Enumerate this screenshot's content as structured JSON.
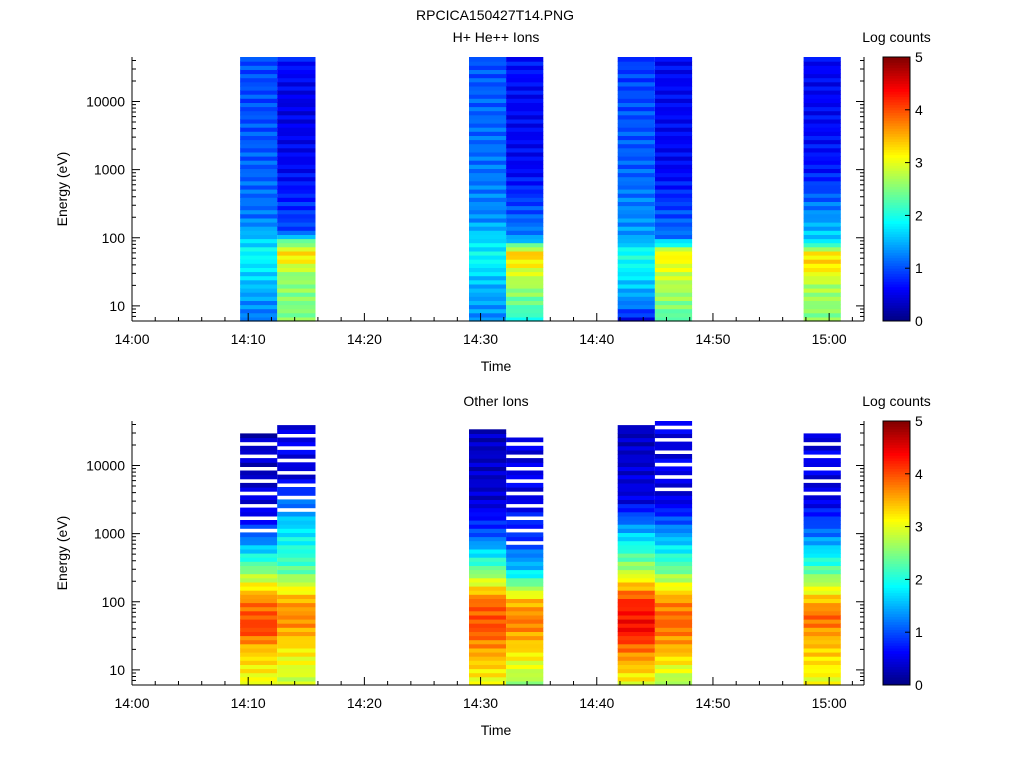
{
  "figure": {
    "title": "RPCICA150427T14.PNG"
  },
  "chart_data": [
    {
      "type": "heatmap",
      "title": "H+ He++ Ions",
      "xlabel": "Time",
      "ylabel": "Energy (eV)",
      "colorbar_label": "Log counts",
      "colorbar_ticks": [
        "0",
        "1",
        "2",
        "3",
        "4",
        "5"
      ],
      "color_range": [
        0,
        5
      ],
      "colormap": "jet",
      "x_tick_labels": [
        "14:00",
        "14:10",
        "14:20",
        "14:30",
        "14:40",
        "14:50",
        "15:00"
      ],
      "x_range_minutes": [
        0,
        63
      ],
      "y_tick_labels": [
        "10",
        "100",
        "1000",
        "10000"
      ],
      "y_scale": "log",
      "y_range": [
        6,
        45000
      ],
      "columns": [
        {
          "start": 9.3,
          "end": 12.5,
          "profile": [
            [
              6,
              1.2
            ],
            [
              10,
              1.3
            ],
            [
              30,
              1.7
            ],
            [
              60,
              1.9
            ],
            [
              100,
              1.6
            ],
            [
              200,
              1.2
            ],
            [
              1000,
              1.1
            ],
            [
              10000,
              1.0
            ],
            [
              45000,
              1.0
            ]
          ]
        },
        {
          "start": 12.5,
          "end": 15.8,
          "profile": [
            [
              6,
              2.5
            ],
            [
              10,
              2.5
            ],
            [
              30,
              2.6
            ],
            [
              40,
              3.0
            ],
            [
              60,
              3.3
            ],
            [
              100,
              2.0
            ],
            [
              120,
              1.0
            ],
            [
              1000,
              0.6
            ],
            [
              10000,
              0.5
            ],
            [
              45000,
              0.7
            ]
          ]
        },
        {
          "start": 29.0,
          "end": 32.2,
          "profile": [
            [
              6,
              1.3
            ],
            [
              20,
              1.5
            ],
            [
              50,
              1.9
            ],
            [
              100,
              1.7
            ],
            [
              200,
              1.3
            ],
            [
              1000,
              1.2
            ],
            [
              10000,
              1.1
            ],
            [
              45000,
              1.0
            ]
          ]
        },
        {
          "start": 32.2,
          "end": 35.4,
          "profile": [
            [
              6,
              2.0
            ],
            [
              10,
              2.3
            ],
            [
              30,
              2.9
            ],
            [
              60,
              3.4
            ],
            [
              100,
              1.3
            ],
            [
              1000,
              0.6
            ],
            [
              10000,
              0.6
            ],
            [
              45000,
              0.7
            ]
          ]
        },
        {
          "start": 41.8,
          "end": 45.0,
          "profile": [
            [
              6,
              0.5
            ],
            [
              10,
              1.2
            ],
            [
              30,
              1.8
            ],
            [
              60,
              2.0
            ],
            [
              100,
              1.4
            ],
            [
              1000,
              1.1
            ],
            [
              10000,
              1.0
            ],
            [
              45000,
              0.9
            ]
          ]
        },
        {
          "start": 45.0,
          "end": 48.2,
          "profile": [
            [
              6,
              2.2
            ],
            [
              10,
              2.5
            ],
            [
              30,
              2.9
            ],
            [
              60,
              3.2
            ],
            [
              100,
              1.2
            ],
            [
              1000,
              0.6
            ],
            [
              10000,
              0.6
            ],
            [
              45000,
              0.6
            ]
          ]
        },
        {
          "start": 57.8,
          "end": 61.0,
          "profile": [
            [
              6,
              2.5
            ],
            [
              20,
              2.7
            ],
            [
              40,
              3.3
            ],
            [
              60,
              3.2
            ],
            [
              90,
              1.7
            ],
            [
              1000,
              0.7
            ],
            [
              10000,
              0.6
            ],
            [
              45000,
              0.6
            ]
          ]
        }
      ]
    },
    {
      "type": "heatmap",
      "title": "Other Ions",
      "xlabel": "Time",
      "ylabel": "Energy (eV)",
      "colorbar_label": "Log counts",
      "colorbar_ticks": [
        "0",
        "1",
        "2",
        "3",
        "4",
        "5"
      ],
      "color_range": [
        0,
        5
      ],
      "colormap": "jet",
      "x_tick_labels": [
        "14:00",
        "14:10",
        "14:20",
        "14:30",
        "14:40",
        "14:50",
        "15:00"
      ],
      "x_range_minutes": [
        0,
        63
      ],
      "y_tick_labels": [
        "10",
        "100",
        "1000",
        "10000"
      ],
      "y_scale": "log",
      "y_range": [
        6,
        45000
      ],
      "columns": [
        {
          "start": 9.3,
          "end": 12.5,
          "profile": [
            [
              6,
              3.0
            ],
            [
              20,
              3.4
            ],
            [
              40,
              4.1
            ],
            [
              100,
              3.8
            ],
            [
              300,
              2.5
            ],
            [
              1000,
              1.0
            ],
            [
              3000,
              0.4
            ],
            [
              30000,
              0.3
            ]
          ],
          "top": 32000,
          "gap_above": 800
        },
        {
          "start": 12.5,
          "end": 15.8,
          "profile": [
            [
              6,
              2.8
            ],
            [
              20,
              3.2
            ],
            [
              50,
              3.7
            ],
            [
              100,
              3.6
            ],
            [
              300,
              2.3
            ],
            [
              1000,
              1.8
            ],
            [
              2000,
              1.5
            ],
            [
              6000,
              0.5
            ]
          ],
          "top": 38000,
          "gap_above": 2200
        },
        {
          "start": 29.0,
          "end": 32.2,
          "profile": [
            [
              6,
              3.0
            ],
            [
              20,
              3.6
            ],
            [
              40,
              4.0
            ],
            [
              100,
              3.9
            ],
            [
              300,
              2.4
            ],
            [
              1000,
              1.0
            ],
            [
              3000,
              0.4
            ],
            [
              40000,
              0.3
            ]
          ],
          "top": 40000,
          "gap_above": 30000
        },
        {
          "start": 32.2,
          "end": 35.4,
          "profile": [
            [
              6,
              2.6
            ],
            [
              20,
              3.3
            ],
            [
              50,
              3.8
            ],
            [
              100,
              3.5
            ],
            [
              300,
              1.6
            ],
            [
              1000,
              0.8
            ],
            [
              4000,
              0.5
            ]
          ],
          "top": 25000,
          "gap_above": 700
        },
        {
          "start": 41.8,
          "end": 45.0,
          "profile": [
            [
              6,
              3.0
            ],
            [
              20,
              3.8
            ],
            [
              40,
              4.4
            ],
            [
              100,
              4.2
            ],
            [
              300,
              2.7
            ],
            [
              1000,
              1.6
            ],
            [
              3000,
              0.5
            ],
            [
              40000,
              0.3
            ]
          ],
          "top": 40000,
          "gap_above": 30000
        },
        {
          "start": 45.0,
          "end": 48.2,
          "profile": [
            [
              6,
              2.6
            ],
            [
              20,
              3.5
            ],
            [
              50,
              3.9
            ],
            [
              100,
              3.7
            ],
            [
              300,
              2.4
            ],
            [
              1000,
              1.4
            ],
            [
              3000,
              0.5
            ]
          ],
          "top": 42000,
          "gap_above": 3500
        },
        {
          "start": 57.8,
          "end": 61.0,
          "profile": [
            [
              6,
              3.0
            ],
            [
              30,
              3.5
            ],
            [
              60,
              3.9
            ],
            [
              100,
              3.5
            ],
            [
              300,
              2.3
            ],
            [
              1000,
              1.2
            ],
            [
              3000,
              0.5
            ]
          ],
          "top": 30000,
          "gap_above": 3000
        }
      ]
    }
  ]
}
